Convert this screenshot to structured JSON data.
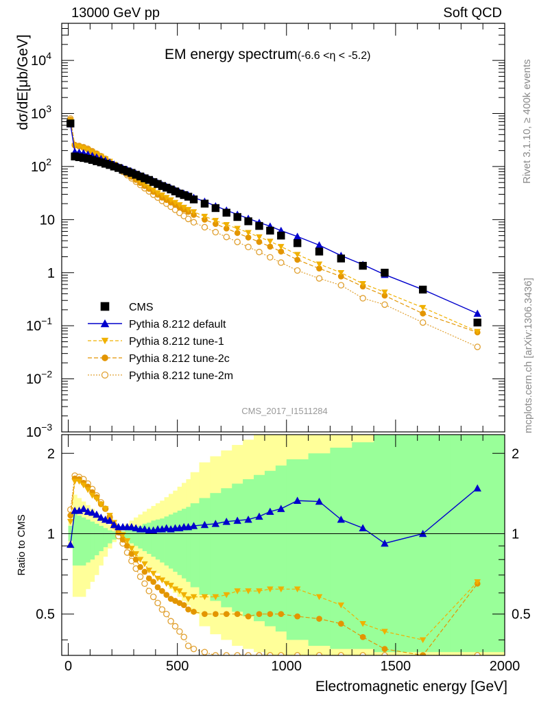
{
  "header": {
    "left": "13000 GeV pp",
    "right": "Soft QCD",
    "side_top": "Rivet 3.1.10, ≥ 400k events",
    "side_bottom": "mcplots.cern.ch [arXiv:1306.3436]"
  },
  "colors": {
    "cms": "#000000",
    "default": "#0000cc",
    "tune1": "#f0b000",
    "tune2c": "#e39500",
    "tune2m": "#e0a030",
    "band_yellow": "#ffff99",
    "band_green": "#99ff99"
  },
  "chart_data": [
    {
      "type": "line",
      "title": "EM energy spectrum",
      "title_suffix": "(-6.6 <η < -5.2)",
      "watermark": "CMS_2017_I1511284",
      "ylabel": "dσ/dE[μb/GeV]",
      "yscale": "log",
      "ylim": [
        0.001,
        50000
      ],
      "xlim": [
        -30,
        2000
      ],
      "y_ticks": [
        {
          "v": 0.001,
          "base": "10",
          "exp": "−3"
        },
        {
          "v": 0.01,
          "base": "10",
          "exp": "−2"
        },
        {
          "v": 0.1,
          "base": "10",
          "exp": "−1"
        },
        {
          "v": 1,
          "base": "1",
          "exp": ""
        },
        {
          "v": 10,
          "base": "10",
          "exp": ""
        },
        {
          "v": 100,
          "base": "10",
          "exp": "2"
        },
        {
          "v": 1000,
          "base": "10",
          "exp": "3"
        },
        {
          "v": 10000,
          "base": "10",
          "exp": "4"
        }
      ],
      "x": [
        10,
        30,
        50,
        70,
        90,
        110,
        130,
        150,
        170,
        190,
        210,
        230,
        250,
        270,
        290,
        310,
        330,
        350,
        370,
        390,
        410,
        430,
        450,
        470,
        490,
        510,
        530,
        550,
        575,
        625,
        675,
        725,
        775,
        825,
        875,
        925,
        975,
        1050,
        1150,
        1250,
        1350,
        1450,
        1625,
        1875
      ],
      "series": [
        {
          "name": "CMS",
          "style": "cms",
          "values": [
            650,
            155,
            150,
            145,
            140,
            133,
            126,
            120,
            113,
            107,
            100,
            94,
            87,
            81,
            76,
            70,
            65,
            60,
            56,
            51,
            47,
            43,
            40,
            37,
            34,
            31,
            29,
            27,
            24,
            20,
            16.5,
            13.5,
            11.2,
            9.3,
            7.6,
            6.2,
            5.0,
            3.6,
            2.5,
            1.85,
            1.35,
            1.0,
            0.48,
            0.115
          ]
        },
        {
          "name": "Pythia 8.212 default",
          "style": "default",
          "values": [
            630,
            190,
            185,
            180,
            170,
            160,
            150,
            140,
            130,
            120,
            110,
            100,
            93,
            87,
            81,
            74,
            68,
            63,
            58,
            53,
            49,
            45,
            42,
            39,
            36,
            33,
            31,
            29,
            26,
            22,
            18,
            15,
            12.5,
            10.5,
            8.8,
            7.5,
            6.2,
            4.8,
            3.3,
            2.1,
            1.42,
            0.92,
            0.48,
            0.17
          ]
        },
        {
          "name": "Pythia 8.212 tune-1",
          "style": "tune1",
          "values": [
            720,
            245,
            235,
            220,
            205,
            185,
            170,
            155,
            140,
            125,
            110,
            97,
            86,
            76,
            67,
            59,
            52,
            46,
            41,
            36,
            32,
            29,
            26,
            23.5,
            21,
            19,
            17,
            15.5,
            14,
            11.5,
            9.6,
            8.0,
            6.8,
            5.7,
            4.7,
            3.9,
            3.1,
            2.2,
            1.45,
            1.0,
            0.62,
            0.43,
            0.22,
            0.078
          ]
        },
        {
          "name": "Pythia 8.212 tune-2c",
          "style": "tune2c",
          "values": [
            760,
            250,
            240,
            225,
            210,
            190,
            172,
            155,
            140,
            124,
            108,
            95,
            83,
            73,
            64,
            56,
            49,
            43,
            38,
            33.5,
            29.5,
            26,
            23.5,
            21,
            19,
            17,
            15.5,
            14,
            12.3,
            10,
            8.3,
            6.8,
            5.6,
            4.6,
            3.8,
            3.1,
            2.5,
            1.75,
            1.2,
            0.85,
            0.55,
            0.37,
            0.17,
            0.075
          ]
        },
        {
          "name": "Pythia 8.212 tune-2m",
          "style": "tune2m",
          "values": [
            800,
            255,
            245,
            232,
            216,
            195,
            175,
            157,
            140,
            123,
            107,
            92,
            80,
            69,
            60,
            52,
            45,
            39,
            34,
            29.5,
            26,
            22.5,
            20,
            17.5,
            15.3,
            13.4,
            11.7,
            10.3,
            8.9,
            7.2,
            5.8,
            4.7,
            3.8,
            3.05,
            2.45,
            1.95,
            1.55,
            1.1,
            0.78,
            0.58,
            0.33,
            0.25,
            0.115,
            0.04
          ]
        }
      ]
    },
    {
      "type": "line",
      "title": "Ratio to CMS",
      "ylabel": "Ratio to CMS",
      "xlabel": "Electromagnetic energy [GeV]",
      "yscale": "log",
      "ylim": [
        0.35,
        2.35
      ],
      "xlim": [
        -30,
        2000
      ],
      "y_ticks": [
        {
          "v": 0.5,
          "label": "0.5"
        },
        {
          "v": 1,
          "label": "1"
        },
        {
          "v": 2,
          "label": "2"
        }
      ],
      "x_ticks": [
        {
          "v": 0,
          "label": "0"
        },
        {
          "v": 500,
          "label": "500"
        },
        {
          "v": 1000,
          "label": "1000"
        },
        {
          "v": 1500,
          "label": "1500"
        },
        {
          "v": 2000,
          "label": "2000"
        }
      ],
      "x": [
        10,
        30,
        50,
        70,
        90,
        110,
        130,
        150,
        170,
        190,
        210,
        230,
        250,
        270,
        290,
        310,
        330,
        350,
        370,
        390,
        410,
        430,
        450,
        470,
        490,
        510,
        530,
        550,
        575,
        625,
        675,
        725,
        775,
        825,
        875,
        925,
        975,
        1050,
        1150,
        1250,
        1350,
        1450,
        1625,
        1875
      ],
      "band_edges": [
        0,
        20,
        40,
        60,
        80,
        100,
        120,
        140,
        160,
        180,
        200,
        220,
        240,
        260,
        280,
        300,
        320,
        340,
        360,
        380,
        400,
        420,
        440,
        460,
        480,
        500,
        520,
        540,
        560,
        600,
        650,
        700,
        750,
        800,
        850,
        900,
        950,
        1000,
        1100,
        1200,
        1300,
        1400,
        1500,
        1750,
        2000
      ],
      "band_yellow": {
        "lo": [
          0.88,
          0.58,
          0.58,
          0.58,
          0.62,
          0.66,
          0.7,
          0.76,
          0.82,
          0.88,
          0.93,
          0.97,
          0.94,
          0.9,
          0.87,
          0.84,
          0.81,
          0.78,
          0.75,
          0.73,
          0.71,
          0.68,
          0.65,
          0.62,
          0.6,
          0.58,
          0.56,
          0.54,
          0.5,
          0.45,
          0.42,
          0.4,
          0.38,
          0.37,
          0.36,
          0.35,
          0.35,
          0.35,
          0.35,
          0.35,
          0.35,
          0.35,
          0.35,
          0.35
        ],
        "hi": [
          1.14,
          1.4,
          1.36,
          1.32,
          1.28,
          1.24,
          1.2,
          1.16,
          1.12,
          1.08,
          1.04,
          1.02,
          1.06,
          1.09,
          1.12,
          1.15,
          1.18,
          1.21,
          1.24,
          1.27,
          1.3,
          1.33,
          1.37,
          1.41,
          1.45,
          1.5,
          1.55,
          1.6,
          1.7,
          1.85,
          1.95,
          2.05,
          2.15,
          2.25,
          2.35,
          2.35,
          2.35,
          2.35,
          2.35,
          2.35,
          2.35,
          2.35,
          2.35,
          2.35
        ]
      },
      "band_green": {
        "lo": [
          0.94,
          0.76,
          0.76,
          0.76,
          0.78,
          0.8,
          0.83,
          0.86,
          0.89,
          0.92,
          0.95,
          0.98,
          0.96,
          0.94,
          0.92,
          0.9,
          0.88,
          0.86,
          0.84,
          0.82,
          0.8,
          0.78,
          0.76,
          0.74,
          0.72,
          0.7,
          0.68,
          0.66,
          0.63,
          0.59,
          0.56,
          0.53,
          0.51,
          0.49,
          0.47,
          0.45,
          0.43,
          0.4,
          0.38,
          0.37,
          0.37,
          0.36,
          0.36,
          0.36
        ],
        "hi": [
          1.07,
          1.19,
          1.17,
          1.15,
          1.13,
          1.11,
          1.09,
          1.07,
          1.05,
          1.03,
          1.02,
          1.01,
          1.02,
          1.03,
          1.05,
          1.06,
          1.07,
          1.09,
          1.1,
          1.12,
          1.13,
          1.14,
          1.16,
          1.18,
          1.2,
          1.22,
          1.24,
          1.26,
          1.3,
          1.36,
          1.42,
          1.48,
          1.54,
          1.6,
          1.66,
          1.72,
          1.8,
          1.9,
          2.0,
          2.1,
          2.2,
          2.35,
          2.35,
          2.35
        ]
      },
      "series": [
        {
          "name": "Pythia 8.212 default",
          "style": "default",
          "values": [
            0.91,
            1.22,
            1.22,
            1.24,
            1.21,
            1.2,
            1.18,
            1.15,
            1.13,
            1.12,
            1.08,
            1.06,
            1.06,
            1.06,
            1.06,
            1.05,
            1.04,
            1.04,
            1.03,
            1.03,
            1.04,
            1.04,
            1.05,
            1.04,
            1.05,
            1.05,
            1.06,
            1.06,
            1.07,
            1.08,
            1.09,
            1.11,
            1.12,
            1.13,
            1.16,
            1.21,
            1.24,
            1.33,
            1.32,
            1.13,
            1.05,
            0.92,
            1.0,
            1.48
          ]
        },
        {
          "name": "Pythia 8.212 tune-1",
          "style": "tune1",
          "values": [
            1.11,
            1.57,
            1.57,
            1.52,
            1.46,
            1.39,
            1.35,
            1.29,
            1.24,
            1.17,
            1.1,
            1.03,
            0.99,
            0.94,
            0.88,
            0.84,
            0.8,
            0.77,
            0.73,
            0.71,
            0.68,
            0.67,
            0.65,
            0.64,
            0.62,
            0.61,
            0.59,
            0.57,
            0.58,
            0.58,
            0.58,
            0.59,
            0.61,
            0.61,
            0.61,
            0.62,
            0.62,
            0.62,
            0.58,
            0.54,
            0.46,
            0.43,
            0.4,
            0.66
          ]
        },
        {
          "name": "Pythia 8.212 tune-2c",
          "style": "tune2c",
          "values": [
            1.17,
            1.61,
            1.6,
            1.55,
            1.5,
            1.43,
            1.37,
            1.29,
            1.24,
            1.16,
            1.08,
            1.01,
            0.95,
            0.9,
            0.84,
            0.8,
            0.75,
            0.72,
            0.68,
            0.66,
            0.63,
            0.61,
            0.59,
            0.57,
            0.56,
            0.55,
            0.54,
            0.52,
            0.51,
            0.5,
            0.5,
            0.5,
            0.5,
            0.49,
            0.5,
            0.5,
            0.5,
            0.49,
            0.48,
            0.46,
            0.41,
            0.37,
            0.35,
            0.65
          ]
        },
        {
          "name": "Pythia 8.212 tune-2m",
          "style": "tune2m",
          "values": [
            1.23,
            1.65,
            1.63,
            1.6,
            1.54,
            1.47,
            1.39,
            1.31,
            1.24,
            1.15,
            1.07,
            0.98,
            0.92,
            0.85,
            0.79,
            0.74,
            0.69,
            0.65,
            0.61,
            0.58,
            0.55,
            0.52,
            0.5,
            0.47,
            0.45,
            0.43,
            0.41,
            0.38,
            0.37,
            0.36,
            0.35,
            0.35,
            0.35,
            0.35,
            0.35,
            0.35,
            0.35,
            0.35,
            0.35,
            0.35,
            0.35,
            0.35,
            0.35,
            0.35
          ]
        }
      ]
    }
  ]
}
